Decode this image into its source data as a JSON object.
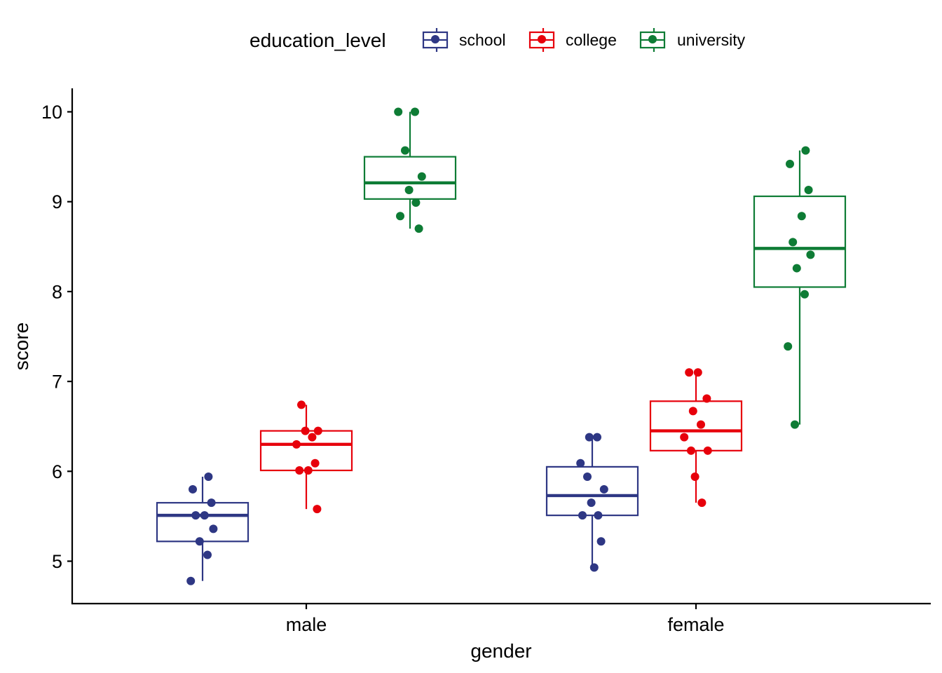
{
  "chart_data": {
    "type": "boxplot",
    "title": "",
    "xlabel": "gender",
    "ylabel": "score",
    "categories": [
      "male",
      "female"
    ],
    "ylim": [
      4.55,
      10.27
    ],
    "yticks": [
      5,
      6,
      7,
      8,
      9,
      10
    ],
    "legend": {
      "title": "education_level",
      "position": "top"
    },
    "series": [
      {
        "name": "school",
        "color": "#2E3784",
        "boxes": [
          {
            "category": "male",
            "whisker_low": 4.78,
            "q1": 5.22,
            "median": 5.51,
            "q3": 5.65,
            "whisker_high": 5.94
          },
          {
            "category": "female",
            "whisker_low": 4.93,
            "q1": 5.51,
            "median": 5.73,
            "q3": 6.05,
            "whisker_high": 6.38
          }
        ],
        "points": [
          {
            "category": "male",
            "values": [
              4.78,
              5.07,
              5.22,
              5.36,
              5.51,
              5.51,
              5.65,
              5.8,
              5.94
            ]
          },
          {
            "category": "female",
            "values": [
              4.93,
              5.22,
              5.51,
              5.51,
              5.65,
              5.8,
              5.94,
              6.09,
              6.38,
              6.38
            ]
          }
        ]
      },
      {
        "name": "college",
        "color": "#E7000B",
        "boxes": [
          {
            "category": "male",
            "whisker_low": 5.58,
            "q1": 6.01,
            "median": 6.3,
            "q3": 6.45,
            "whisker_high": 6.74
          },
          {
            "category": "female",
            "whisker_low": 5.65,
            "q1": 6.23,
            "median": 6.45,
            "q3": 6.78,
            "whisker_high": 7.1
          }
        ],
        "points": [
          {
            "category": "male",
            "values": [
              5.58,
              6.01,
              6.01,
              6.09,
              6.3,
              6.38,
              6.45,
              6.45,
              6.74
            ]
          },
          {
            "category": "female",
            "values": [
              5.65,
              5.94,
              6.23,
              6.23,
              6.38,
              6.52,
              6.67,
              6.81,
              7.1,
              7.1
            ]
          }
        ]
      },
      {
        "name": "university",
        "color": "#0E7C35",
        "boxes": [
          {
            "category": "male",
            "whisker_low": 8.7,
            "q1": 9.03,
            "median": 9.21,
            "q3": 9.5,
            "whisker_high": 10.0
          },
          {
            "category": "female",
            "whisker_low": 6.52,
            "q1": 8.05,
            "median": 8.48,
            "q3": 9.06,
            "whisker_high": 9.57
          }
        ],
        "points": [
          {
            "category": "male",
            "values": [
              8.7,
              8.84,
              8.99,
              9.13,
              9.28,
              9.57,
              10.0,
              10.0
            ]
          },
          {
            "category": "female",
            "values": [
              6.52,
              7.39,
              7.97,
              8.26,
              8.41,
              8.55,
              8.84,
              9.13,
              9.42,
              9.57
            ]
          }
        ]
      }
    ]
  }
}
